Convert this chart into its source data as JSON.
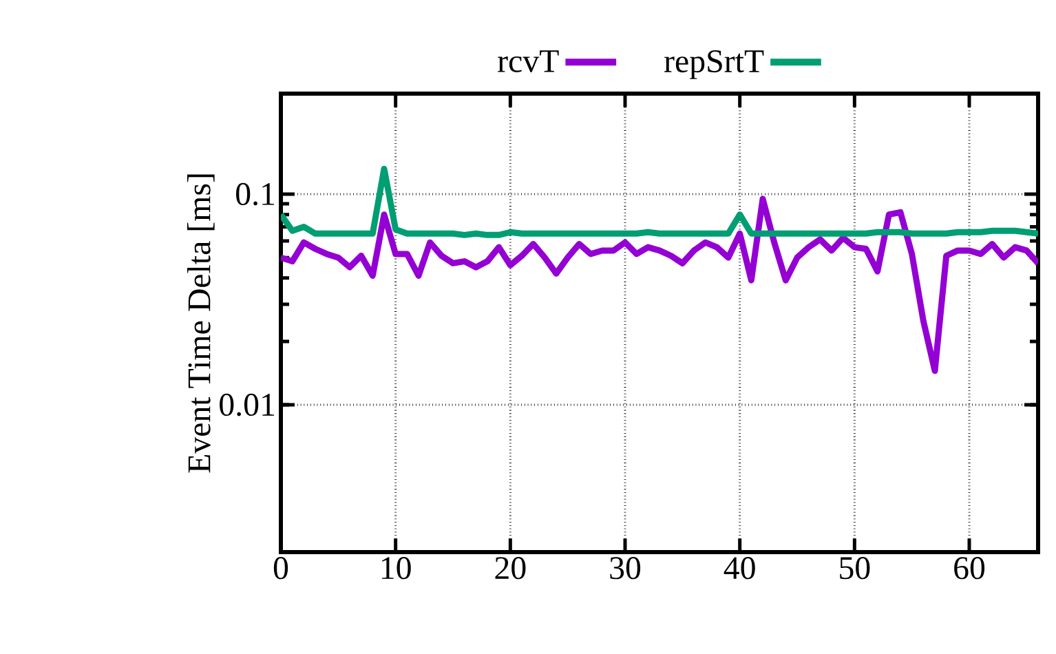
{
  "chart_data": {
    "type": "line",
    "ylabel": "Event Time Delta [ms]",
    "log": "y",
    "grid": true,
    "legend": "top",
    "line_style": "solid",
    "x": [
      0,
      1,
      2,
      3,
      4,
      5,
      6,
      7,
      8,
      9,
      10,
      11,
      12,
      13,
      14,
      15,
      16,
      17,
      18,
      19,
      20,
      21,
      22,
      23,
      24,
      25,
      26,
      27,
      28,
      29,
      30,
      31,
      32,
      33,
      34,
      35,
      36,
      37,
      38,
      39,
      40,
      41,
      42,
      43,
      44,
      45,
      46,
      47,
      48,
      49,
      50,
      51,
      52,
      53,
      54,
      55,
      56,
      57,
      58,
      59,
      60,
      61,
      62,
      63,
      64,
      65,
      66
    ],
    "xlim": [
      0,
      66
    ],
    "xticks": [
      0,
      10,
      20,
      30,
      40,
      50,
      60
    ],
    "ylim": [
      0.002,
      0.3
    ],
    "yticks": [
      0.01,
      0.1
    ],
    "series": [
      {
        "name": "rcvT",
        "color": "#9400d3",
        "values": [
          0.05,
          0.048,
          0.059,
          0.055,
          0.052,
          0.05,
          0.045,
          0.051,
          0.041,
          0.08,
          0.052,
          0.052,
          0.041,
          0.059,
          0.051,
          0.047,
          0.048,
          0.045,
          0.048,
          0.056,
          0.046,
          0.051,
          0.058,
          0.05,
          0.042,
          0.05,
          0.058,
          0.052,
          0.054,
          0.054,
          0.059,
          0.052,
          0.056,
          0.054,
          0.051,
          0.047,
          0.054,
          0.059,
          0.056,
          0.05,
          0.065,
          0.039,
          0.095,
          0.059,
          0.039,
          0.05,
          0.056,
          0.061,
          0.054,
          0.062,
          0.056,
          0.055,
          0.043,
          0.08,
          0.082,
          0.052,
          0.025,
          0.0145,
          0.051,
          0.054,
          0.054,
          0.052,
          0.058,
          0.05,
          0.056,
          0.054,
          0.047
        ]
      },
      {
        "name": "repSrtT",
        "color": "#009e73",
        "values": [
          0.08,
          0.067,
          0.07,
          0.065,
          0.065,
          0.065,
          0.065,
          0.065,
          0.065,
          0.132,
          0.068,
          0.065,
          0.065,
          0.065,
          0.065,
          0.065,
          0.064,
          0.065,
          0.064,
          0.064,
          0.066,
          0.065,
          0.065,
          0.065,
          0.065,
          0.065,
          0.065,
          0.065,
          0.065,
          0.065,
          0.065,
          0.065,
          0.066,
          0.065,
          0.065,
          0.065,
          0.065,
          0.065,
          0.065,
          0.065,
          0.08,
          0.065,
          0.065,
          0.065,
          0.065,
          0.065,
          0.065,
          0.065,
          0.065,
          0.065,
          0.065,
          0.065,
          0.066,
          0.066,
          0.066,
          0.065,
          0.065,
          0.065,
          0.065,
          0.066,
          0.066,
          0.066,
          0.067,
          0.067,
          0.067,
          0.066,
          0.065
        ]
      }
    ]
  }
}
